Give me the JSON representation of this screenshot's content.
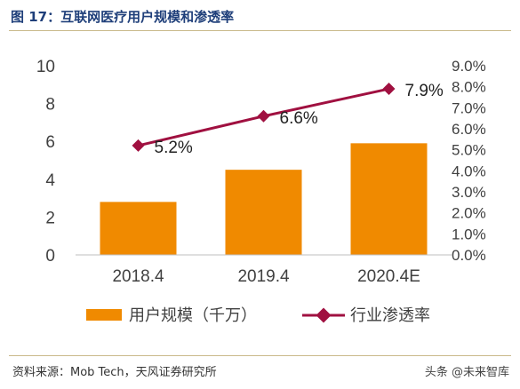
{
  "figure": {
    "title": "图 17：互联网医疗用户规模和渗透率",
    "source": "资料来源：Mob Tech，天风证券研究所",
    "watermark": "头条 @未来智库"
  },
  "colors": {
    "bar": "#F08A00",
    "line": "#A01040",
    "axis_text": "#404040",
    "title": "#1f3f7a"
  },
  "chart_data": {
    "type": "bar",
    "categories": [
      "2018.4",
      "2019.4",
      "2020.4E"
    ],
    "series": [
      {
        "name": "用户规模（千万）",
        "type": "bar",
        "axis": "left",
        "values": [
          2.8,
          4.5,
          5.9
        ],
        "color": "#F08A00"
      },
      {
        "name": "行业渗透率",
        "type": "line",
        "axis": "right",
        "values": [
          5.2,
          6.6,
          7.9
        ],
        "labels": [
          "5.2%",
          "6.6%",
          "7.9%"
        ],
        "color": "#A01040"
      }
    ],
    "y_left": {
      "min": 0,
      "max": 10,
      "ticks": [
        "0",
        "2",
        "4",
        "6",
        "8",
        "10"
      ],
      "tick_values": [
        0,
        2,
        4,
        6,
        8,
        10
      ]
    },
    "y_right": {
      "min": 0,
      "max": 9,
      "ticks": [
        "0.0%",
        "1.0%",
        "2.0%",
        "3.0%",
        "4.0%",
        "5.0%",
        "6.0%",
        "7.0%",
        "8.0%",
        "9.0%"
      ],
      "tick_values": [
        0,
        1,
        2,
        3,
        4,
        5,
        6,
        7,
        8,
        9
      ]
    },
    "grid": false,
    "legend_position": "bottom"
  }
}
